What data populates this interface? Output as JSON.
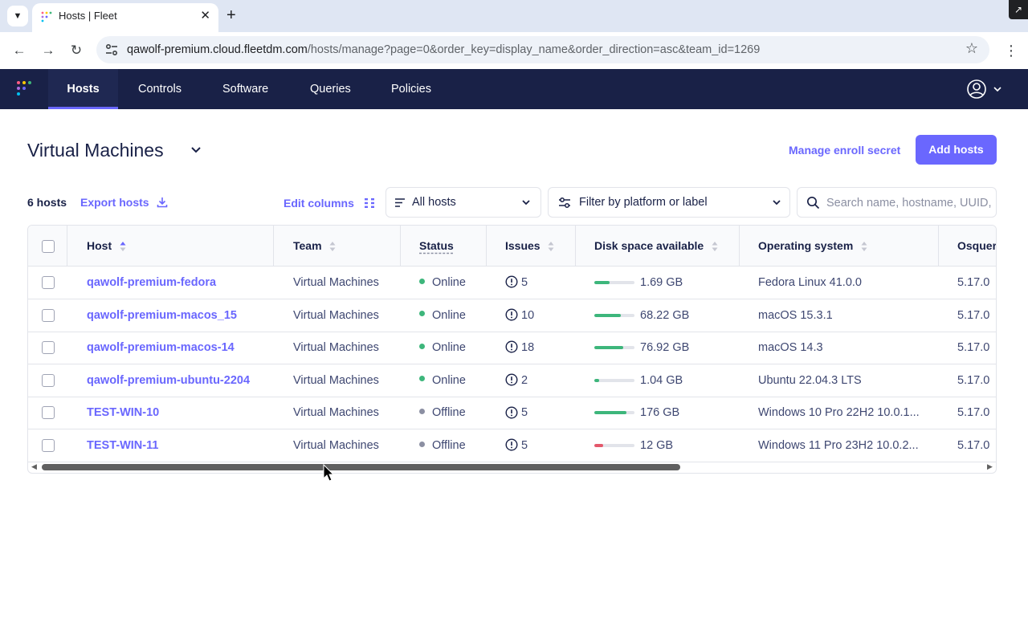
{
  "browser": {
    "tab_title": "Hosts | Fleet",
    "url_host": "qawolf-premium.cloud.fleetdm.com",
    "url_path": "/hosts/manage?page=0&order_key=display_name&order_direction=asc&team_id=1269"
  },
  "nav": {
    "items": [
      "Hosts",
      "Controls",
      "Software",
      "Queries",
      "Policies"
    ],
    "active": "Hosts"
  },
  "page": {
    "title": "Virtual Machines",
    "manage_enroll_secret": "Manage enroll secret",
    "add_hosts": "Add hosts",
    "host_count": "6 hosts",
    "export_hosts": "Export hosts",
    "edit_columns": "Edit columns",
    "status_filter": "All hosts",
    "platform_filter": "Filter by platform or label",
    "search_placeholder": "Search name, hostname, UUID, serial number, or IP address"
  },
  "table": {
    "columns": [
      "Host",
      "Team",
      "Status",
      "Issues",
      "Disk space available",
      "Operating system",
      "Osquery"
    ],
    "rows": [
      {
        "host": "qawolf-premium-fedora",
        "team": "Virtual Machines",
        "status": "Online",
        "issues": "5",
        "disk": "1.69 GB",
        "disk_level": 0.38,
        "os": "Fedora Linux 41.0.0",
        "osquery": "5.17.0"
      },
      {
        "host": "qawolf-premium-macos_15",
        "team": "Virtual Machines",
        "status": "Online",
        "issues": "10",
        "disk": "68.22 GB",
        "disk_level": 0.65,
        "os": "macOS 15.3.1",
        "osquery": "5.17.0"
      },
      {
        "host": "qawolf-premium-macos-14",
        "team": "Virtual Machines",
        "status": "Online",
        "issues": "18",
        "disk": "76.92 GB",
        "disk_level": 0.72,
        "os": "macOS 14.3",
        "osquery": "5.17.0"
      },
      {
        "host": "qawolf-premium-ubuntu-2204",
        "team": "Virtual Machines",
        "status": "Online",
        "issues": "2",
        "disk": "1.04 GB",
        "disk_level": 0.12,
        "os": "Ubuntu 22.04.3 LTS",
        "osquery": "5.17.0"
      },
      {
        "host": "TEST-WIN-10",
        "team": "Virtual Machines",
        "status": "Offline",
        "issues": "5",
        "disk": "176 GB",
        "disk_level": 0.8,
        "os": "Windows 10 Pro 22H2 10.0.1...",
        "osquery": "5.17.0"
      },
      {
        "host": "TEST-WIN-11",
        "team": "Virtual Machines",
        "status": "Offline",
        "issues": "5",
        "disk": "12 GB",
        "disk_level": 0.22,
        "os": "Windows 11 Pro 23H2 10.0.2...",
        "osquery": "5.17.0"
      }
    ]
  },
  "colors": {
    "brand": "#6a67fe",
    "nav_bg": "#192147",
    "online": "#3db67b",
    "offline": "#8b8fa2",
    "disk_ok": "#3db67b",
    "disk_low": "#e4586b"
  }
}
